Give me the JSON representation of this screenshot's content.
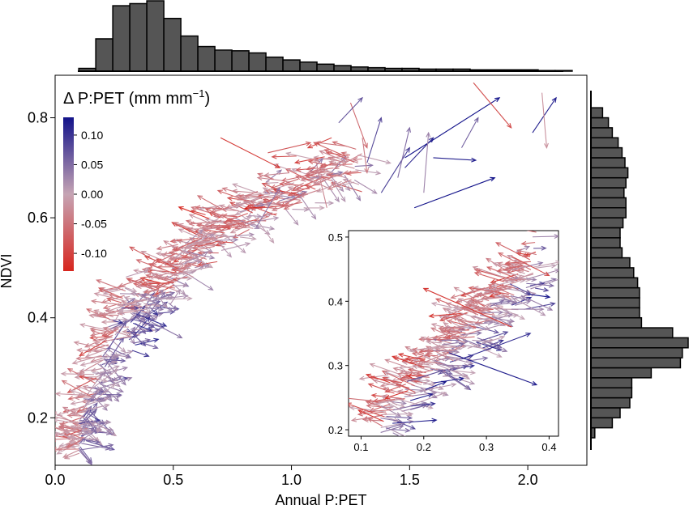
{
  "chart_data": {
    "type": "scatter",
    "subtype": "vector-field",
    "main": {
      "xlabel": "Annual P:PET",
      "ylabel": "NDVI",
      "xlim": [
        0.0,
        2.25
      ],
      "ylim": [
        0.105,
        0.885
      ],
      "xticks": [
        "0.0",
        "0.5",
        "1.0",
        "1.5",
        "2.0"
      ],
      "xtick_values": [
        0,
        0.5,
        1.0,
        1.5,
        2.0
      ],
      "yticks": [
        "0.2",
        "0.4",
        "0.6",
        "0.8"
      ],
      "ytick_values": [
        0.2,
        0.4,
        0.6,
        0.8
      ],
      "grid": false
    },
    "colorbar": {
      "title": "Δ P:PET (mm mm",
      "title_sup": "−1",
      "title_end": ")",
      "ticks": [
        "0.10",
        "0.05",
        "0.00",
        "-0.05",
        "-0.10"
      ],
      "tick_values": [
        0.1,
        0.05,
        0.0,
        -0.05,
        -0.1
      ],
      "range": [
        -0.13,
        0.13
      ],
      "colors": {
        "low": "#d7261e",
        "mid": "#c6a4b4",
        "high": "#13138a"
      },
      "placement": "top-left"
    },
    "inset": {
      "xlim": [
        0.08,
        0.415
      ],
      "ylim": [
        0.19,
        0.51
      ],
      "xticks": [
        "0.1",
        "0.2",
        "0.3",
        "0.4"
      ],
      "xtick_values": [
        0.1,
        0.2,
        0.3,
        0.4
      ],
      "yticks": [
        "0.2",
        "0.3",
        "0.4",
        "0.5"
      ],
      "ytick_values": [
        0.2,
        0.3,
        0.4,
        0.5
      ],
      "placement": "bottom-right"
    },
    "top_histogram": {
      "variable": "Annual P:PET",
      "bin_width": 0.072,
      "bin_start": 0.1,
      "relative_heights": [
        0.04,
        0.46,
        0.93,
        0.96,
        1.0,
        0.75,
        0.5,
        0.35,
        0.3,
        0.29,
        0.26,
        0.2,
        0.16,
        0.13,
        0.1,
        0.08,
        0.06,
        0.05,
        0.04,
        0.04,
        0.03,
        0.03,
        0.03,
        0.02,
        0.02,
        0.02,
        0.02,
        0.01,
        0.01
      ]
    },
    "right_histogram": {
      "variable": "NDVI",
      "bin_width": 0.02,
      "bin_start": 0.16,
      "relative_heights_bottom_to_top": [
        0.04,
        0.22,
        0.3,
        0.4,
        0.42,
        0.42,
        0.62,
        0.92,
        0.94,
        1.0,
        0.84,
        0.52,
        0.5,
        0.5,
        0.5,
        0.48,
        0.44,
        0.4,
        0.32,
        0.3,
        0.3,
        0.33,
        0.36,
        0.36,
        0.34,
        0.36,
        0.38,
        0.35,
        0.32,
        0.28,
        0.22,
        0.18,
        0.12
      ]
    },
    "arrows": [
      {
        "x0": 1.25,
        "y0": 0.83,
        "x1": 1.32,
        "y1": 0.74,
        "d": -0.06
      },
      {
        "x0": 1.48,
        "y0": 0.7,
        "x1": 1.6,
        "y1": 0.76,
        "d": 0.11
      },
      {
        "x0": 1.52,
        "y0": 0.62,
        "x1": 1.86,
        "y1": 0.68,
        "d": 0.13
      },
      {
        "x0": 1.6,
        "y0": 0.72,
        "x1": 1.78,
        "y1": 0.715,
        "d": 0.12
      },
      {
        "x0": 1.48,
        "y0": 0.72,
        "x1": 1.88,
        "y1": 0.84,
        "d": 0.13
      },
      {
        "x0": 1.77,
        "y0": 0.87,
        "x1": 1.93,
        "y1": 0.78,
        "d": -0.09
      },
      {
        "x0": 2.02,
        "y0": 0.77,
        "x1": 2.12,
        "y1": 0.84,
        "d": 0.12
      },
      {
        "x0": 2.06,
        "y0": 0.85,
        "x1": 2.08,
        "y1": 0.74,
        "d": -0.02
      },
      {
        "x0": 1.72,
        "y0": 0.74,
        "x1": 1.79,
        "y1": 0.8,
        "d": 0.06
      },
      {
        "x0": 1.38,
        "y0": 0.65,
        "x1": 1.5,
        "y1": 0.74,
        "d": 0.09
      },
      {
        "x0": 1.45,
        "y0": 0.68,
        "x1": 1.5,
        "y1": 0.78,
        "d": 0.05
      },
      {
        "x0": 1.32,
        "y0": 0.71,
        "x1": 1.38,
        "y1": 0.8,
        "d": 0.08
      },
      {
        "x0": 1.2,
        "y0": 0.79,
        "x1": 1.3,
        "y1": 0.84,
        "d": 0.07
      },
      {
        "x0": 1.17,
        "y0": 0.76,
        "x1": 1.07,
        "y1": 0.74,
        "d": -0.1
      },
      {
        "x0": 1.56,
        "y0": 0.65,
        "x1": 1.58,
        "y1": 0.77,
        "d": 0.03
      },
      {
        "x0": 1.3,
        "y0": 0.76,
        "x1": 1.32,
        "y1": 0.69,
        "d": -0.04
      },
      {
        "x0": 1.15,
        "y0": 0.62,
        "x1": 1.1,
        "y1": 0.72,
        "d": -0.03
      },
      {
        "x0": 0.85,
        "y0": 0.58,
        "x1": 0.95,
        "y1": 0.66,
        "d": 0.04
      },
      {
        "x0": 0.7,
        "y0": 0.76,
        "x1": 0.95,
        "y1": 0.7,
        "d": -0.11
      },
      {
        "x0": 0.9,
        "y0": 0.73,
        "x1": 1.08,
        "y1": 0.75,
        "d": -0.08
      }
    ],
    "inset_arrows": [
      {
        "x0": 0.34,
        "y0": 0.36,
        "x1": 0.2,
        "y1": 0.42,
        "d": -0.11
      },
      {
        "x0": 0.24,
        "y0": 0.32,
        "x1": 0.38,
        "y1": 0.27,
        "d": 0.12
      },
      {
        "x0": 0.15,
        "y0": 0.21,
        "x1": 0.22,
        "y1": 0.215,
        "d": 0.12
      },
      {
        "x0": 0.34,
        "y0": 0.47,
        "x1": 0.4,
        "y1": 0.44,
        "d": -0.09
      },
      {
        "x0": 0.26,
        "y0": 0.31,
        "x1": 0.37,
        "y1": 0.35,
        "d": 0.11
      }
    ]
  }
}
